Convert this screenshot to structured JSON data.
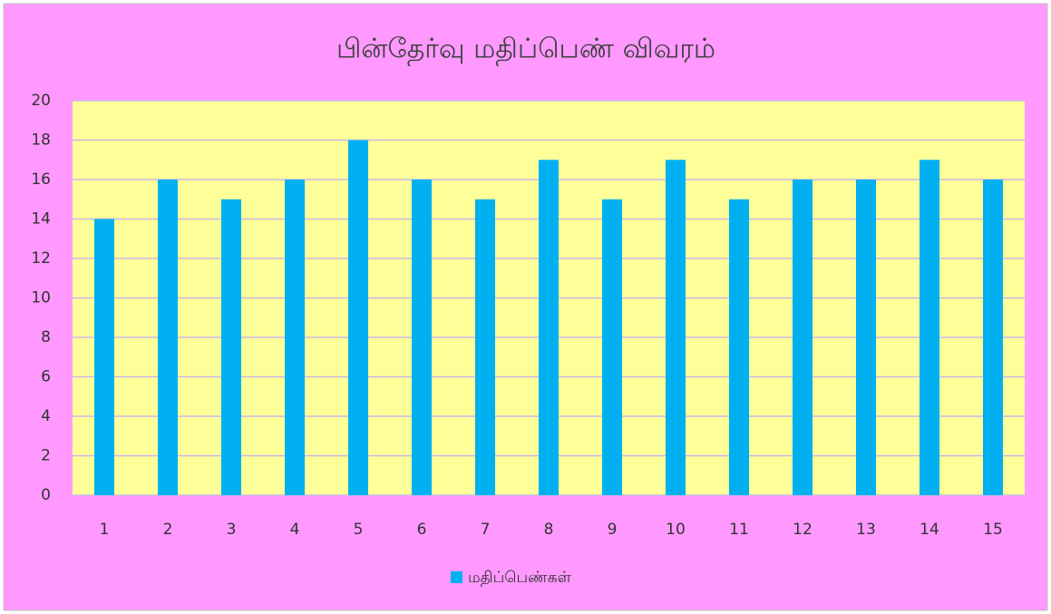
{
  "chart_data": {
    "type": "bar",
    "title": "பின்தேர்வு மதிப்பெண் விவரம்",
    "categories": [
      "1",
      "2",
      "3",
      "4",
      "5",
      "6",
      "7",
      "8",
      "9",
      "10",
      "11",
      "12",
      "13",
      "14",
      "15"
    ],
    "series": [
      {
        "name": "மதிப்பெண்கள்",
        "color": "#00b0f0",
        "values": [
          14,
          16,
          15,
          16,
          18,
          16,
          15,
          17,
          15,
          17,
          15,
          16,
          16,
          17,
          16
        ]
      }
    ],
    "ylim": [
      0,
      20
    ],
    "yticks": [
      0,
      2,
      4,
      6,
      8,
      10,
      12,
      14,
      16,
      18,
      20
    ],
    "grid": true,
    "legend": "bottom"
  }
}
